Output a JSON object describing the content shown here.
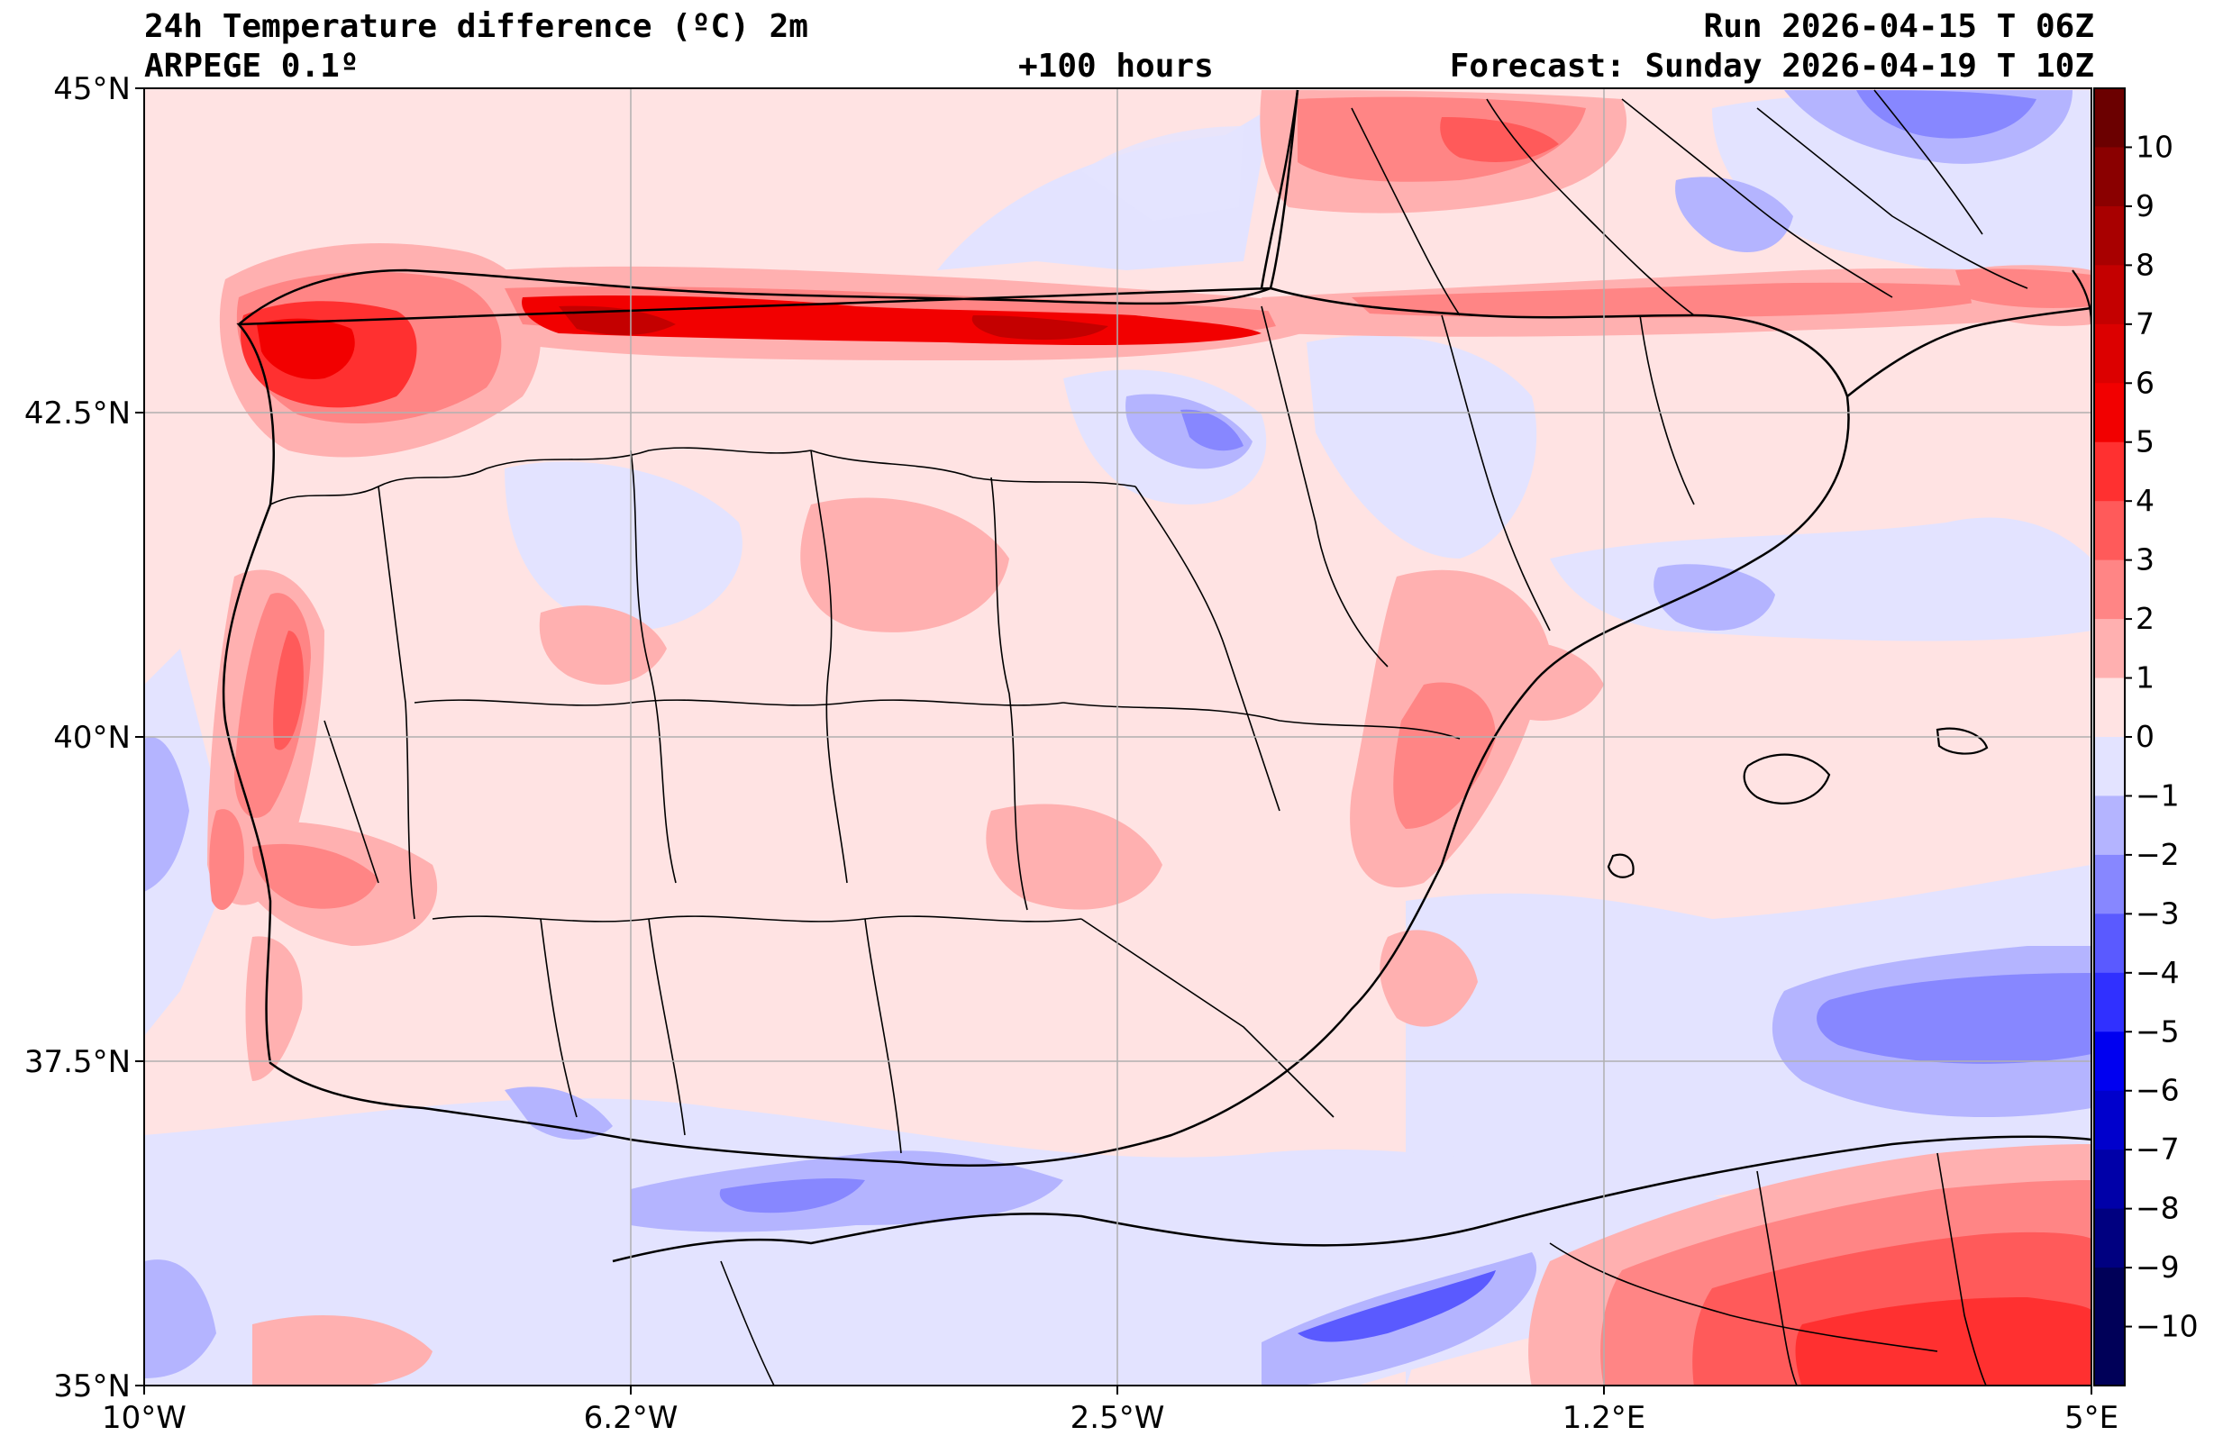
{
  "header": {
    "title": "24h Temperature difference (ºC) 2m",
    "model": "ARPEGE 0.1º",
    "lead": "+100 hours",
    "run": "Run 2026-04-15 T 06Z",
    "forecast": "Forecast: Sunday 2026-04-19 T 10Z"
  },
  "axes": {
    "lat_ticks": [
      "45°N",
      "42.5°N",
      "40°N",
      "37.5°N",
      "35°N"
    ],
    "lon_ticks": [
      "10°W",
      "6.2°W",
      "2.5°W",
      "1.2°E",
      "5°E"
    ],
    "lat_range": [
      35,
      45
    ],
    "lon_range": [
      -10,
      5
    ],
    "grid": true
  },
  "colorbar": {
    "ticks": [
      "10",
      "9",
      "8",
      "7",
      "6",
      "5",
      "4",
      "3",
      "2",
      "1",
      "0",
      "−1",
      "−2",
      "−3",
      "−4",
      "−5",
      "−6",
      "−7",
      "−8",
      "−9",
      "−10"
    ],
    "colors": [
      "#6b0000",
      "#8a0000",
      "#a80000",
      "#c40000",
      "#dc0000",
      "#f20000",
      "#ff3030",
      "#ff5a5a",
      "#ff8585",
      "#ffb0b0",
      "#ffe3e3",
      "#e3e3ff",
      "#b4b4ff",
      "#8787ff",
      "#5a5aff",
      "#3030ff",
      "#0000f0",
      "#0000cc",
      "#0000a8",
      "#000080",
      "#000058"
    ]
  }
}
